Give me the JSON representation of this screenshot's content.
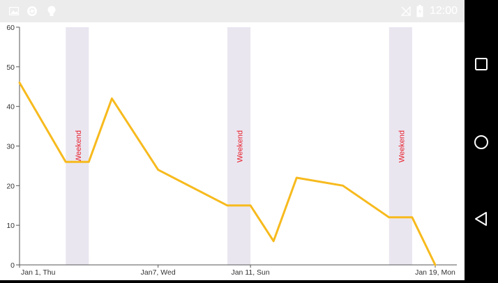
{
  "status_bar": {
    "time": "12:00",
    "left_icons": [
      "image-icon",
      "sync-icon",
      "lightbulb-icon"
    ],
    "right_icons": [
      "no-signal-icon",
      "battery-icon"
    ]
  },
  "nav_bar": {
    "buttons": [
      "overview-square-icon",
      "home-circle-icon",
      "back-triangle-icon"
    ]
  },
  "colors": {
    "line": "#F7BA1D",
    "band": "#EAE6F0",
    "band_label": "#E8202B",
    "axis": "#555555",
    "tick_text": "#333333"
  },
  "chart_data": {
    "type": "line",
    "xlabel": "",
    "ylabel": "",
    "ylim": [
      0,
      60
    ],
    "yticks": [
      0,
      10,
      20,
      30,
      40,
      50,
      60
    ],
    "xlim": [
      "2015-01-01",
      "2015-01-19"
    ],
    "xticks": [
      {
        "date": "2015-01-01",
        "label": "Jan 1, Thu"
      },
      {
        "date": "2015-01-07",
        "label": "Jan7, Wed"
      },
      {
        "date": "2015-01-11",
        "label": "Jan 11, Sun"
      },
      {
        "date": "2015-01-19",
        "label": "Jan 19, Mon"
      }
    ],
    "series": [
      {
        "x": [
          "2015-01-01",
          "2015-01-03",
          "2015-01-04",
          "2015-01-05",
          "2015-01-07",
          "2015-01-10",
          "2015-01-11",
          "2015-01-12",
          "2015-01-13",
          "2015-01-15",
          "2015-01-17",
          "2015-01-18",
          "2015-01-19"
        ],
        "values": [
          46,
          26,
          26,
          42,
          24,
          15,
          15,
          6,
          22,
          20,
          12,
          12,
          0
        ]
      }
    ],
    "bands": [
      {
        "start": "2015-01-03",
        "end": "2015-01-04",
        "label": "Weekend"
      },
      {
        "start": "2015-01-10",
        "end": "2015-01-11",
        "label": "Weekend"
      },
      {
        "start": "2015-01-17",
        "end": "2015-01-18",
        "label": "Weekend"
      }
    ],
    "grid": false,
    "legend": "none"
  }
}
